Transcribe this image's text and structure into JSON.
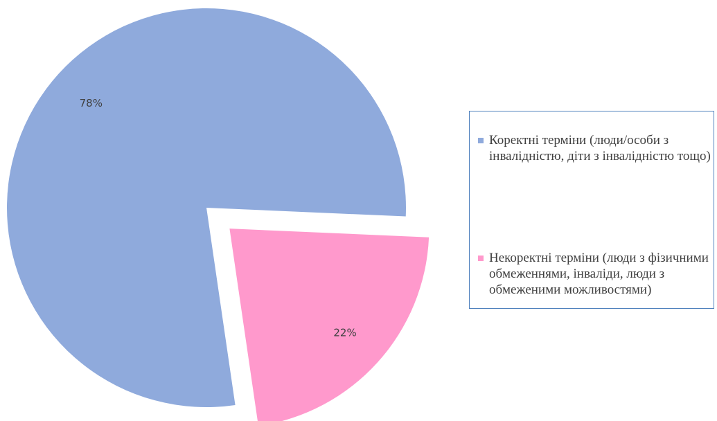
{
  "chart_data": {
    "type": "pie",
    "categories": [
      "Коректні терміни (люди/особи з інвалідністю, діти з інвалідністю тощо)",
      "Некоректні терміни (люди з фізичними обмеженнями, інваліди, люди з обмеженими можливостями)"
    ],
    "values": [
      78,
      22
    ],
    "value_labels": [
      "78%",
      "22%"
    ],
    "colors": [
      "#8faadc",
      "#ff99cc"
    ],
    "explode": [
      false,
      true
    ],
    "legend": "right"
  }
}
